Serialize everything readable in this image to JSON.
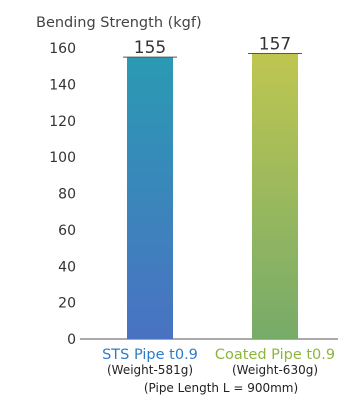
{
  "chart_data": {
    "type": "bar",
    "title": "Bending Strength (kgf)",
    "ylim": [
      0,
      160
    ],
    "yticks": [
      0,
      20,
      40,
      60,
      80,
      100,
      120,
      140,
      160
    ],
    "grid": false,
    "categories": [
      "STS Pipe t0.9",
      "Coated Pipe t0.9"
    ],
    "category_notes": [
      "(Weight-581g)",
      "(Weight-630g)"
    ],
    "values": [
      155,
      157
    ],
    "data_labels": [
      "155",
      "157"
    ],
    "footnote": "(Pipe Length L = 900mm)",
    "colors": {
      "bar1_top": "#2a9ab3",
      "bar1_bottom": "#4a72c2",
      "bar2_top": "#bfc650",
      "bar2_bottom": "#76ab6a",
      "cat1": "#2e7cc8",
      "cat2": "#8cb63c",
      "axis": "#555555"
    }
  }
}
